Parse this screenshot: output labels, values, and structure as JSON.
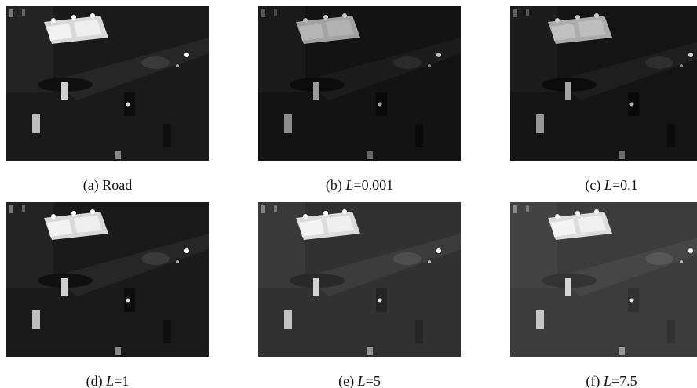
{
  "panels": [
    {
      "tag": "(a)",
      "text": "Road"
    },
    {
      "tag": "(b)",
      "symbol": "L",
      "text": "=0.001"
    },
    {
      "tag": "(c)",
      "symbol": "L",
      "text": "=0.1"
    },
    {
      "tag": "(d)",
      "symbol": "L",
      "text": "=1"
    },
    {
      "tag": "(e)",
      "symbol": "L",
      "text": "=5"
    },
    {
      "tag": "(f)",
      "symbol": "L",
      "text": "=7.5"
    }
  ]
}
